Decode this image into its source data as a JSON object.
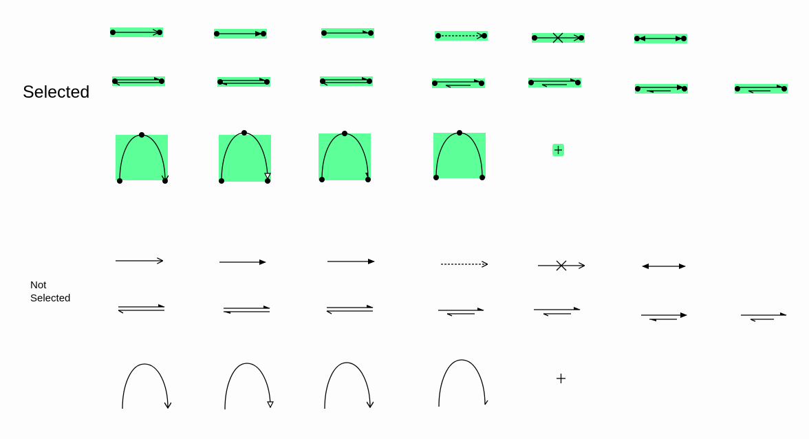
{
  "labels": {
    "selected": "Selected",
    "not_selected": "Not\nSelected"
  },
  "colors": {
    "highlight": "#5cff98",
    "stroke": "#000000",
    "background": "#fdfdfd"
  },
  "selected_section": {
    "row1": [
      "arrow-single-open",
      "arrow-single-filled",
      "arrow-single-half",
      "arrow-dashed",
      "arrow-cross",
      "arrow-double-headed"
    ],
    "row2": [
      "equilibrium-open",
      "equilibrium-filled",
      "equilibrium-half",
      "equilibrium-unbalanced-1",
      "equilibrium-unbalanced-2",
      "equilibrium-unbalanced-3",
      "equilibrium-unbalanced-4"
    ],
    "row3": [
      "curved-arrow-open",
      "curved-arrow-hollow",
      "curved-arrow-half",
      "curved-arrow-plain",
      "plus-sign"
    ]
  },
  "not_selected_section": {
    "row1": [
      "arrow-single-open",
      "arrow-single-filled",
      "arrow-single-half",
      "arrow-dashed",
      "arrow-cross",
      "arrow-double-headed"
    ],
    "row2": [
      "equilibrium-open",
      "equilibrium-filled",
      "equilibrium-half",
      "equilibrium-unbalanced-1",
      "equilibrium-unbalanced-2",
      "equilibrium-unbalanced-3",
      "equilibrium-unbalanced-4"
    ],
    "row3": [
      "curved-arrow-open",
      "curved-arrow-hollow",
      "curved-arrow-half",
      "curved-arrow-plain",
      "plus-sign"
    ]
  }
}
